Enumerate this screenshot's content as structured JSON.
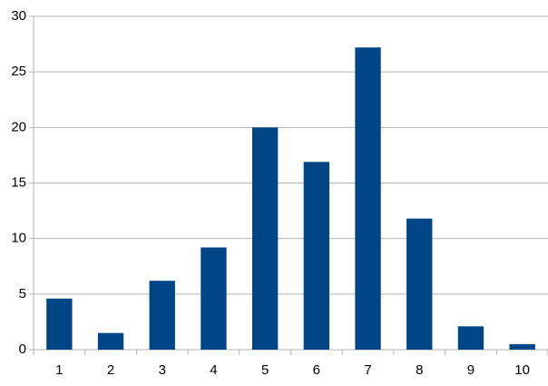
{
  "chart_data": {
    "type": "bar",
    "categories": [
      "1",
      "2",
      "3",
      "4",
      "5",
      "6",
      "7",
      "8",
      "9",
      "10"
    ],
    "values": [
      4.6,
      1.5,
      6.2,
      9.2,
      20,
      16.9,
      27.2,
      11.8,
      2.1,
      0.5
    ],
    "color": "#004586",
    "ylim": [
      0,
      30
    ],
    "yticks": [
      0,
      5,
      10,
      15,
      20,
      25,
      30
    ],
    "grid": true
  }
}
